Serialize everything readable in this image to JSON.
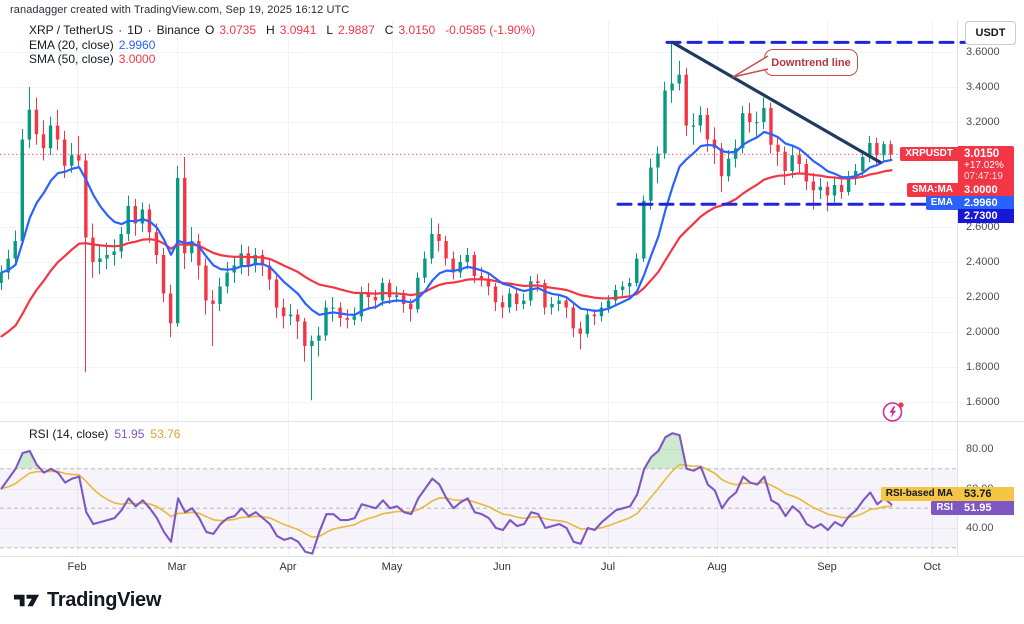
{
  "header": {
    "attribution": "ranadagger created with TradingView.com, Sep 19, 2025 16:12 UTC"
  },
  "legend": {
    "symbol": "XRP / TetherUS",
    "separator": "·",
    "interval": "1D",
    "exchange": "Binance",
    "o_label": "O",
    "o": "3.0735",
    "h_label": "H",
    "h": "3.0941",
    "l_label": "L",
    "l": "2.9887",
    "c_label": "C",
    "c": "3.0150",
    "change": "-0.0585 (-1.90%)",
    "ema_label": "EMA (20, close)",
    "ema_value": "2.9960",
    "sma_label": "SMA (50, close)",
    "sma_value": "3.0000"
  },
  "rsi_legend": {
    "label": "RSI (14, close)",
    "rsi_value": "51.95",
    "ma_value": "53.76"
  },
  "axis": {
    "currency_button": "USDT"
  },
  "badges": {
    "symbol": "XRPUSDT",
    "price": "3.0150",
    "change_pct": "+17.02%",
    "countdown": "07:47:19",
    "sma_label": "SMA:MA",
    "sma_value": "3.0000",
    "ema_label": "EMA",
    "ema_value": "2.9960",
    "level_value": "2.7300",
    "rsi_ma_label": "RSI-based MA",
    "rsi_ma_value": "53.76",
    "rsi_label": "RSI",
    "rsi_value": "51.95"
  },
  "annotations": {
    "callout": "Downtrend line"
  },
  "footer": {
    "logo_text": "TradingView"
  },
  "colors": {
    "up": "#089981",
    "down": "#F23645",
    "ema": "#2962FF",
    "sma": "#F23645",
    "rsi": "#7E57C2",
    "rsi_ma": "#E8B93B",
    "dashed_blue": "#2024E0",
    "trend_line": "#1e3a5f",
    "support_badge": "#1717D6",
    "grid": "#f0f3fa",
    "separator": "#e0e3eb",
    "over70_fill": "rgba(76,175,80,0.28)",
    "boost_pink": "#D02E9D"
  },
  "chart_data": {
    "type": "candlestick",
    "title": "XRP / TetherUS 1D Binance",
    "subpanel": "RSI (14) with RSI-based MA",
    "sample_interval_days": 2,
    "months": [
      "Feb",
      "Mar",
      "Apr",
      "May",
      "Jun",
      "Jul",
      "Aug",
      "Sep",
      "Oct"
    ],
    "price_ticks": [
      3.6,
      3.4,
      3.2,
      3.0,
      2.8,
      2.6,
      2.4,
      2.2,
      2.0,
      1.8,
      1.6
    ],
    "rsi_ticks": [
      80,
      60,
      40
    ],
    "rsi_bands": [
      70,
      50,
      30
    ],
    "current_price": 3.015,
    "levels": {
      "resistance": 3.655,
      "support": 2.73
    },
    "trendline": {
      "from_index": 95,
      "from_price": 3.655,
      "to_index": 124.4,
      "to_price": 2.97
    },
    "ema_period": 20,
    "sma_period": 50,
    "rsi_period": 14,
    "candles": [
      [
        2.28,
        2.38,
        2.24,
        2.34
      ],
      [
        2.34,
        2.47,
        2.3,
        2.42
      ],
      [
        2.42,
        2.58,
        2.38,
        2.52
      ],
      [
        2.52,
        3.16,
        2.5,
        3.1
      ],
      [
        3.1,
        3.4,
        3.05,
        3.27
      ],
      [
        3.27,
        3.34,
        3.07,
        3.13
      ],
      [
        3.13,
        3.21,
        2.98,
        3.05
      ],
      [
        3.05,
        3.23,
        3.01,
        3.18
      ],
      [
        3.18,
        3.27,
        3.04,
        3.1
      ],
      [
        3.1,
        3.15,
        2.88,
        2.95
      ],
      [
        2.95,
        3.08,
        2.91,
        3.01
      ],
      [
        3.01,
        3.12,
        2.94,
        2.98
      ],
      [
        2.98,
        3.02,
        1.77,
        2.54
      ],
      [
        2.54,
        2.62,
        2.31,
        2.4
      ],
      [
        2.4,
        2.5,
        2.33,
        2.42
      ],
      [
        2.42,
        2.51,
        2.36,
        2.44
      ],
      [
        2.44,
        2.53,
        2.38,
        2.46
      ],
      [
        2.46,
        2.6,
        2.42,
        2.56
      ],
      [
        2.56,
        2.78,
        2.52,
        2.72
      ],
      [
        2.72,
        2.76,
        2.55,
        2.62
      ],
      [
        2.62,
        2.74,
        2.57,
        2.7
      ],
      [
        2.7,
        2.73,
        2.51,
        2.57
      ],
      [
        2.57,
        2.62,
        2.39,
        2.44
      ],
      [
        2.44,
        2.48,
        2.17,
        2.22
      ],
      [
        2.22,
        2.27,
        1.97,
        2.05
      ],
      [
        2.05,
        2.95,
        2.03,
        2.88
      ],
      [
        2.88,
        3.0,
        2.36,
        2.45
      ],
      [
        2.45,
        2.6,
        2.4,
        2.52
      ],
      [
        2.52,
        2.56,
        2.3,
        2.38
      ],
      [
        2.38,
        2.42,
        2.1,
        2.18
      ],
      [
        2.18,
        2.24,
        1.92,
        2.16
      ],
      [
        2.16,
        2.31,
        2.12,
        2.26
      ],
      [
        2.26,
        2.4,
        2.22,
        2.34
      ],
      [
        2.34,
        2.43,
        2.28,
        2.38
      ],
      [
        2.38,
        2.5,
        2.33,
        2.45
      ],
      [
        2.45,
        2.49,
        2.32,
        2.38
      ],
      [
        2.38,
        2.48,
        2.34,
        2.44
      ],
      [
        2.44,
        2.47,
        2.32,
        2.38
      ],
      [
        2.38,
        2.41,
        2.24,
        2.3
      ],
      [
        2.3,
        2.33,
        2.08,
        2.14
      ],
      [
        2.14,
        2.19,
        2.02,
        2.09
      ],
      [
        2.09,
        2.16,
        2.04,
        2.1
      ],
      [
        2.1,
        2.13,
        1.96,
        2.06
      ],
      [
        2.06,
        2.08,
        1.83,
        1.92
      ],
      [
        1.92,
        1.98,
        1.61,
        1.95
      ],
      [
        1.95,
        2.03,
        1.86,
        1.98
      ],
      [
        1.98,
        2.18,
        1.95,
        2.14
      ],
      [
        2.14,
        2.2,
        2.06,
        2.14
      ],
      [
        2.14,
        2.17,
        2.03,
        2.08
      ],
      [
        2.08,
        2.13,
        2.02,
        2.07
      ],
      [
        2.07,
        2.14,
        2.04,
        2.09
      ],
      [
        2.09,
        2.26,
        2.06,
        2.22
      ],
      [
        2.22,
        2.28,
        2.14,
        2.2
      ],
      [
        2.2,
        2.24,
        2.13,
        2.18
      ],
      [
        2.18,
        2.31,
        2.15,
        2.28
      ],
      [
        2.28,
        2.3,
        2.16,
        2.2
      ],
      [
        2.2,
        2.26,
        2.17,
        2.21
      ],
      [
        2.21,
        2.24,
        2.11,
        2.16
      ],
      [
        2.16,
        2.19,
        2.06,
        2.13
      ],
      [
        2.13,
        2.34,
        2.11,
        2.31
      ],
      [
        2.31,
        2.46,
        2.28,
        2.42
      ],
      [
        2.42,
        2.65,
        2.39,
        2.56
      ],
      [
        2.56,
        2.62,
        2.46,
        2.52
      ],
      [
        2.52,
        2.55,
        2.38,
        2.42
      ],
      [
        2.42,
        2.46,
        2.3,
        2.34
      ],
      [
        2.34,
        2.44,
        2.31,
        2.4
      ],
      [
        2.4,
        2.48,
        2.36,
        2.44
      ],
      [
        2.44,
        2.46,
        2.28,
        2.32
      ],
      [
        2.32,
        2.37,
        2.26,
        2.3
      ],
      [
        2.3,
        2.33,
        2.21,
        2.26
      ],
      [
        2.26,
        2.28,
        2.12,
        2.17
      ],
      [
        2.17,
        2.21,
        2.08,
        2.14
      ],
      [
        2.14,
        2.25,
        2.11,
        2.22
      ],
      [
        2.22,
        2.25,
        2.12,
        2.16
      ],
      [
        2.16,
        2.22,
        2.13,
        2.18
      ],
      [
        2.18,
        2.32,
        2.15,
        2.29
      ],
      [
        2.29,
        2.33,
        2.23,
        2.28
      ],
      [
        2.28,
        2.3,
        2.1,
        2.14
      ],
      [
        2.14,
        2.2,
        2.1,
        2.16
      ],
      [
        2.16,
        2.22,
        2.12,
        2.18
      ],
      [
        2.18,
        2.2,
        2.08,
        2.14
      ],
      [
        2.14,
        2.16,
        1.97,
        2.02
      ],
      [
        2.02,
        2.06,
        1.9,
        1.99
      ],
      [
        1.99,
        2.13,
        1.97,
        2.1
      ],
      [
        2.1,
        2.13,
        2.04,
        2.09
      ],
      [
        2.09,
        2.17,
        2.06,
        2.14
      ],
      [
        2.14,
        2.21,
        2.11,
        2.18
      ],
      [
        2.18,
        2.27,
        2.15,
        2.24
      ],
      [
        2.24,
        2.29,
        2.2,
        2.26
      ],
      [
        2.26,
        2.31,
        2.21,
        2.28
      ],
      [
        2.28,
        2.45,
        2.26,
        2.42
      ],
      [
        2.42,
        2.78,
        2.4,
        2.75
      ],
      [
        2.75,
        2.99,
        2.7,
        2.94
      ],
      [
        2.94,
        3.06,
        2.85,
        3.02
      ],
      [
        3.02,
        3.43,
        2.99,
        3.38
      ],
      [
        3.38,
        3.66,
        3.31,
        3.42
      ],
      [
        3.42,
        3.55,
        3.38,
        3.47
      ],
      [
        3.47,
        3.51,
        3.12,
        3.18
      ],
      [
        3.18,
        3.25,
        3.07,
        3.18
      ],
      [
        3.18,
        3.29,
        3.14,
        3.24
      ],
      [
        3.24,
        3.28,
        3.03,
        3.1
      ],
      [
        3.1,
        3.17,
        2.96,
        3.05
      ],
      [
        3.05,
        3.08,
        2.8,
        2.89
      ],
      [
        2.89,
        3.04,
        2.86,
        2.99
      ],
      [
        2.99,
        3.1,
        2.94,
        3.05
      ],
      [
        3.05,
        3.29,
        3.02,
        3.25
      ],
      [
        3.25,
        3.31,
        3.14,
        3.2
      ],
      [
        3.2,
        3.26,
        3.11,
        3.2
      ],
      [
        3.2,
        3.34,
        3.16,
        3.28
      ],
      [
        3.28,
        3.31,
        3.02,
        3.07
      ],
      [
        3.07,
        3.12,
        2.95,
        3.03
      ],
      [
        3.03,
        3.06,
        2.84,
        2.92
      ],
      [
        2.92,
        3.06,
        2.88,
        3.01
      ],
      [
        3.01,
        3.04,
        2.9,
        2.96
      ],
      [
        2.96,
        2.99,
        2.81,
        2.86
      ],
      [
        2.86,
        2.91,
        2.7,
        2.81
      ],
      [
        2.81,
        2.88,
        2.76,
        2.83
      ],
      [
        2.83,
        2.86,
        2.69,
        2.78
      ],
      [
        2.78,
        2.89,
        2.74,
        2.84
      ],
      [
        2.84,
        2.87,
        2.76,
        2.8
      ],
      [
        2.8,
        2.92,
        2.78,
        2.88
      ],
      [
        2.88,
        2.96,
        2.84,
        2.92
      ],
      [
        2.92,
        3.04,
        2.89,
        3.0
      ],
      [
        3.0,
        3.12,
        2.97,
        3.08
      ],
      [
        3.08,
        3.11,
        2.96,
        3.01
      ],
      [
        3.01,
        3.09,
        2.98,
        3.0735
      ],
      [
        3.0735,
        3.0941,
        2.9887,
        3.015
      ]
    ],
    "rsi": [
      60,
      65,
      70,
      78,
      79,
      72,
      68,
      70,
      68,
      63,
      65,
      66,
      48,
      42,
      43,
      44,
      45,
      49,
      55,
      51,
      54,
      50,
      45,
      38,
      33,
      55,
      48,
      50,
      45,
      38,
      37,
      42,
      45,
      46,
      50,
      46,
      48,
      45,
      42,
      36,
      34,
      35,
      33,
      28,
      27,
      38,
      47,
      47,
      44,
      44,
      45,
      52,
      51,
      50,
      54,
      50,
      51,
      48,
      47,
      55,
      60,
      65,
      62,
      55,
      50,
      53,
      55,
      48,
      47,
      45,
      40,
      39,
      44,
      41,
      42,
      48,
      47,
      40,
      41,
      42,
      40,
      33,
      32,
      40,
      39,
      43,
      46,
      49,
      50,
      51,
      57,
      70,
      76,
      79,
      86,
      88,
      87,
      70,
      69,
      71,
      62,
      59,
      50,
      55,
      58,
      66,
      63,
      62,
      66,
      54,
      52,
      46,
      51,
      48,
      42,
      40,
      42,
      39,
      43,
      41,
      46,
      49,
      54,
      58,
      52,
      55,
      51.95
    ]
  }
}
